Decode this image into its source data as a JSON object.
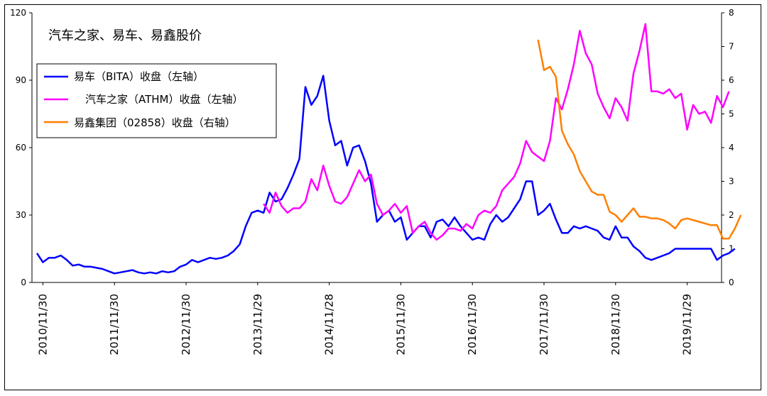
{
  "chart_data": {
    "type": "line",
    "title": "汽车之家、易车、易鑫股价",
    "x_tick_labels": [
      "2010/11/30",
      "2011/11/30",
      "2012/11/30",
      "2013/11/29",
      "2014/11/28",
      "2015/11/30",
      "2016/11/30",
      "2017/11/30",
      "2018/11/30",
      "2019/11/29"
    ],
    "x_start": "2010-10",
    "y_left": {
      "min": 0,
      "max": 120,
      "ticks": [
        0,
        30,
        60,
        90,
        120
      ]
    },
    "y_right": {
      "min": 0,
      "max": 8,
      "ticks": [
        0,
        1,
        2,
        3,
        4,
        5,
        6,
        7,
        8
      ]
    },
    "grid": false,
    "legend_position": "top-left",
    "series": [
      {
        "name": "易车（BITA）收盘（左轴）",
        "axis": "left",
        "color": "#0000ff",
        "start_month": 0,
        "values": [
          13,
          9,
          11,
          11,
          12,
          10,
          7.5,
          8,
          7,
          7,
          6.5,
          6,
          5,
          4,
          4.5,
          5,
          5.5,
          4.5,
          4,
          4.5,
          4,
          5,
          4.5,
          5,
          7,
          8,
          10,
          9,
          10,
          11,
          10.5,
          11,
          12,
          14,
          17,
          25,
          31,
          32,
          31,
          40,
          36,
          37,
          42,
          48,
          55,
          87,
          79,
          83,
          92,
          72,
          61,
          63,
          52,
          60,
          61,
          54,
          44,
          27,
          30,
          32,
          27,
          29,
          19,
          22,
          25,
          25,
          20,
          27,
          28,
          25,
          29,
          25,
          22,
          19,
          20,
          19,
          26,
          30,
          27,
          29,
          33,
          37,
          45,
          45,
          30,
          32,
          35,
          28,
          22,
          22,
          25,
          24,
          25,
          24,
          23,
          20,
          19,
          25,
          20,
          20,
          16,
          14,
          11,
          10,
          11,
          12,
          13,
          15,
          15,
          15,
          15,
          15,
          15,
          15,
          10,
          12,
          13,
          15
        ]
      },
      {
        "name": "汽车之家（ATHM）收盘（左轴）",
        "axis": "left",
        "color": "#ff00ff",
        "start_month": 38,
        "values": [
          35,
          31,
          40,
          34,
          31,
          33,
          33,
          36,
          46,
          41,
          52,
          43,
          36,
          35,
          38,
          44,
          50,
          45,
          48,
          35,
          30,
          32,
          35,
          31,
          34,
          22,
          25,
          27,
          22,
          19,
          21,
          24,
          24,
          23,
          26,
          24,
          30,
          32,
          31,
          34,
          41,
          44,
          47,
          53,
          63,
          58,
          56,
          54,
          63,
          82,
          77,
          86,
          97,
          112,
          102,
          97,
          84,
          78,
          73,
          82,
          78,
          72,
          93,
          103,
          115,
          85,
          85,
          84,
          86,
          82,
          84,
          68,
          79,
          75,
          76,
          71,
          83,
          78,
          85
        ]
      },
      {
        "name": "易鑫集团（02858）收盘（右轴）",
        "axis": "right",
        "color": "#ff7f00",
        "start_month": 84,
        "values": [
          7.2,
          6.3,
          6.4,
          6.1,
          4.5,
          4.1,
          3.8,
          3.3,
          3.0,
          2.7,
          2.6,
          2.6,
          2.1,
          2.0,
          1.8,
          2.0,
          2.2,
          1.95,
          1.95,
          1.9,
          1.9,
          1.85,
          1.75,
          1.6,
          1.85,
          1.9,
          1.85,
          1.8,
          1.75,
          1.7,
          1.7,
          1.3,
          1.3,
          1.6,
          2.0
        ]
      }
    ]
  }
}
